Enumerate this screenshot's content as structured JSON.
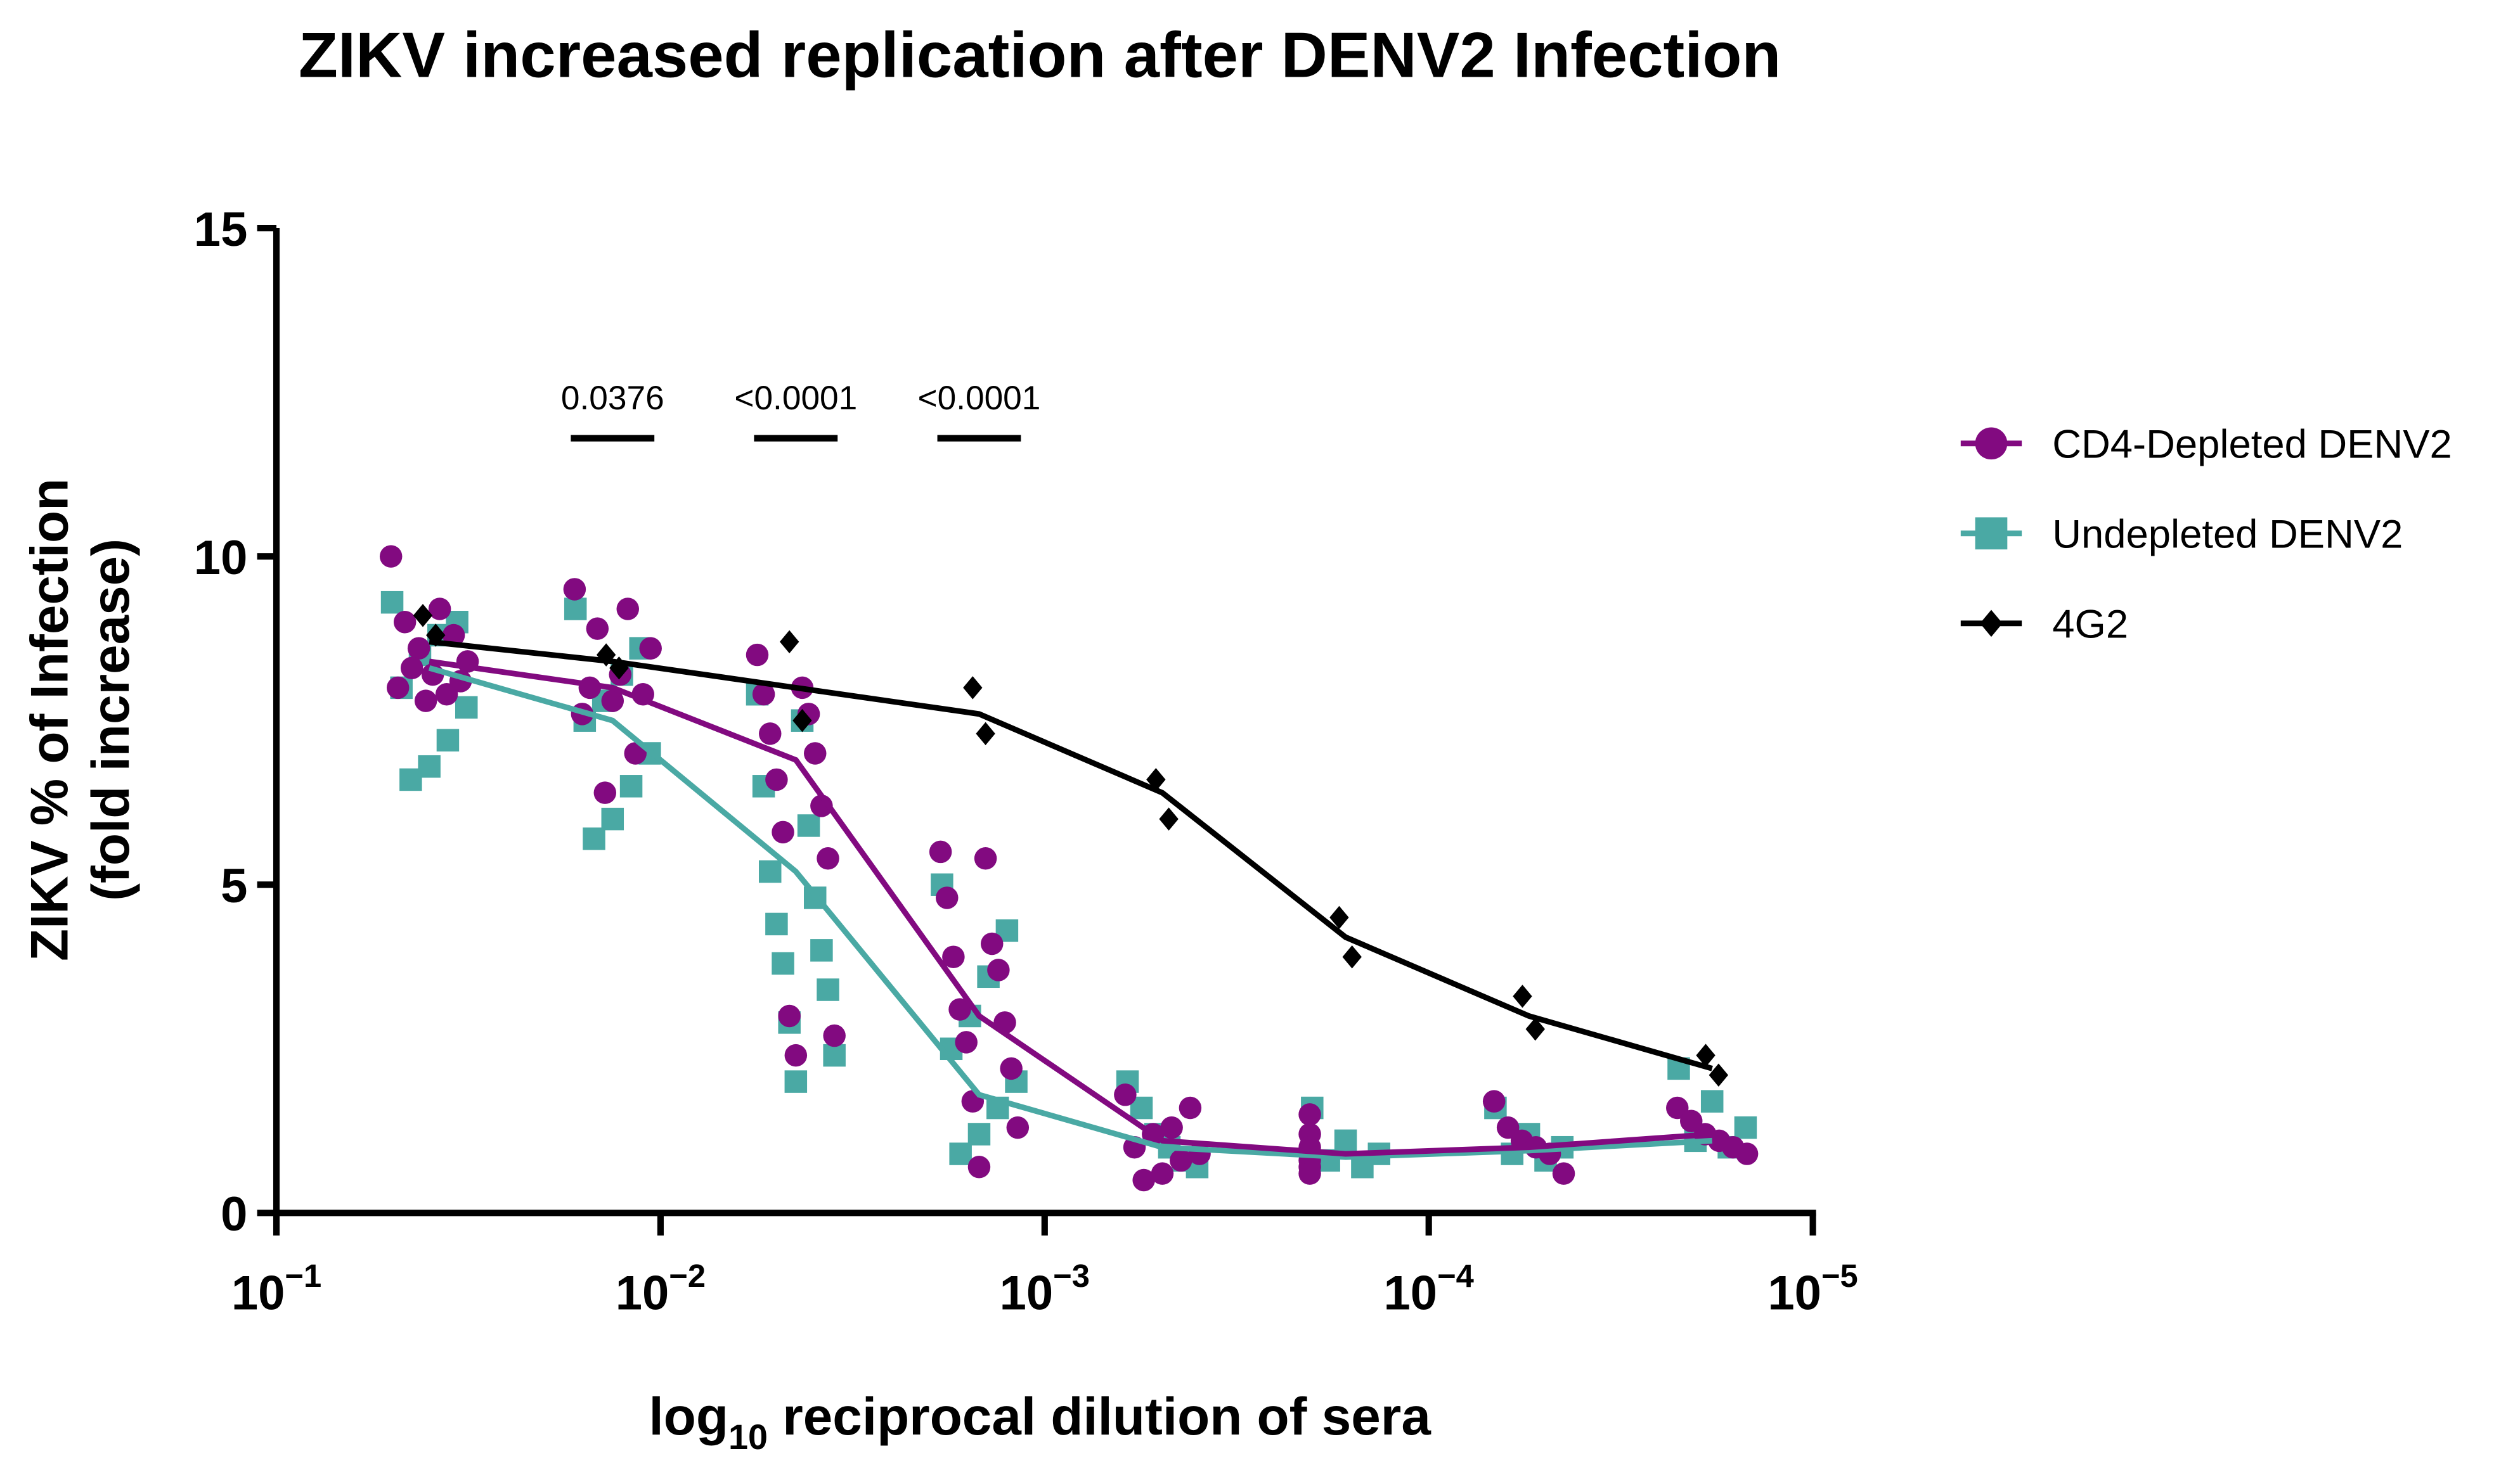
{
  "chart_data": {
    "type": "scatter",
    "title": "ZIKV increased replication after DENV2 Infection",
    "xlabel": {
      "text": "log",
      "sub": "10",
      "rest": " reciprocal dilution of sera"
    },
    "ylabel": [
      "ZIKV % of Infection",
      "(fold increase)"
    ],
    "xscale": "log",
    "xlim": [
      0.1,
      1e-05
    ],
    "xticks": [
      {
        "value": 0.1,
        "label": "10",
        "exponent": "−1"
      },
      {
        "value": 0.01,
        "label": "10",
        "exponent": "−2"
      },
      {
        "value": 0.001,
        "label": "10",
        "exponent": "−3"
      },
      {
        "value": 0.0001,
        "label": "10",
        "exponent": "−4"
      },
      {
        "value": 1e-05,
        "label": "10",
        "exponent": "−5"
      }
    ],
    "ylim": [
      0,
      15
    ],
    "yticks": [
      0,
      5,
      10,
      15
    ],
    "legend": "right",
    "x": [
      0.04,
      0.01333,
      0.004444,
      0.001481,
      0.0004938,
      0.0001646,
      5.487e-05,
      1.829e-05
    ],
    "series": [
      {
        "name": "Undepleted DENV2",
        "color": "#4aa9a4",
        "marker": "square",
        "values": [
          8.3,
          7.5,
          5.2,
          1.8,
          1.0,
          0.85,
          0.95,
          1.1
        ],
        "points": [
          [
            9.3,
            9.0,
            8.8,
            8.5,
            8.0,
            7.7,
            7.2,
            6.8,
            6.6
          ],
          [
            9.2,
            8.6,
            8.2,
            7.8,
            7.5,
            7.0,
            6.5,
            6.0,
            5.7
          ],
          [
            7.9,
            7.5,
            6.5,
            5.9,
            5.2,
            4.8,
            4.4,
            4.0,
            3.8,
            3.4,
            2.9,
            2.4,
            2.0
          ],
          [
            5.0,
            4.3,
            3.6,
            3.0,
            2.5,
            2.0,
            1.6,
            1.2,
            0.9
          ],
          [
            2.0,
            1.6,
            1.2,
            1.0,
            0.8,
            0.7
          ],
          [
            1.6,
            1.1,
            0.9,
            0.8,
            0.7
          ],
          [
            1.6,
            1.2,
            1.0,
            0.9,
            0.8
          ],
          [
            2.2,
            1.7,
            1.3,
            1.1,
            1.0
          ]
        ]
      },
      {
        "name": "CD4-Depleted DENV2",
        "color": "#820a80",
        "marker": "circle",
        "values": [
          8.4,
          8.0,
          6.9,
          3.0,
          1.1,
          0.9,
          1.0,
          1.2
        ],
        "points": [
          [
            10.0,
            9.2,
            9.0,
            8.8,
            8.6,
            8.4,
            8.2,
            8.0,
            7.9,
            8.3,
            8.1,
            7.8
          ],
          [
            9.5,
            9.2,
            8.9,
            8.6,
            8.2,
            8.0,
            7.9,
            7.8,
            7.6,
            7.0,
            6.4
          ],
          [
            8.5,
            8.0,
            7.9,
            7.6,
            7.3,
            7.0,
            6.6,
            6.2,
            5.8,
            5.4,
            3.0,
            2.7,
            2.4
          ],
          [
            5.5,
            5.4,
            4.8,
            4.1,
            3.9,
            3.7,
            3.1,
            2.9,
            2.6,
            2.2,
            1.7,
            1.3,
            0.7
          ],
          [
            1.8,
            1.6,
            1.3,
            1.2,
            1.0,
            0.9,
            0.8,
            0.6,
            0.5
          ],
          [
            1.5,
            1.2,
            1.0,
            0.9,
            0.8,
            0.7,
            0.6
          ],
          [
            1.7,
            1.3,
            1.1,
            1.0,
            0.9,
            0.6
          ],
          [
            1.6,
            1.4,
            1.2,
            1.1,
            1.0,
            0.9
          ]
        ]
      },
      {
        "name": "4G2",
        "color": "#000000",
        "marker": "diamond",
        "values": [
          8.7,
          8.4,
          8.0,
          7.6,
          6.4,
          4.2,
          3.0,
          2.2
        ],
        "points": [
          [
            9.1,
            8.8
          ],
          [
            8.5,
            8.3
          ],
          [
            8.7,
            7.5
          ],
          [
            8.0,
            7.3
          ],
          [
            6.6,
            6.0
          ],
          [
            4.5,
            3.9
          ],
          [
            3.3,
            2.8
          ],
          [
            2.4,
            2.1
          ]
        ]
      }
    ],
    "legend_order": [
      1,
      0,
      2
    ],
    "annotations": [
      {
        "text": "0.0376",
        "x": 0.01333,
        "y": 11.8
      },
      {
        "text": "<0.0001",
        "x": 0.004444,
        "y": 11.8
      },
      {
        "text": "<0.0001",
        "x": 0.001481,
        "y": 11.8
      }
    ]
  }
}
